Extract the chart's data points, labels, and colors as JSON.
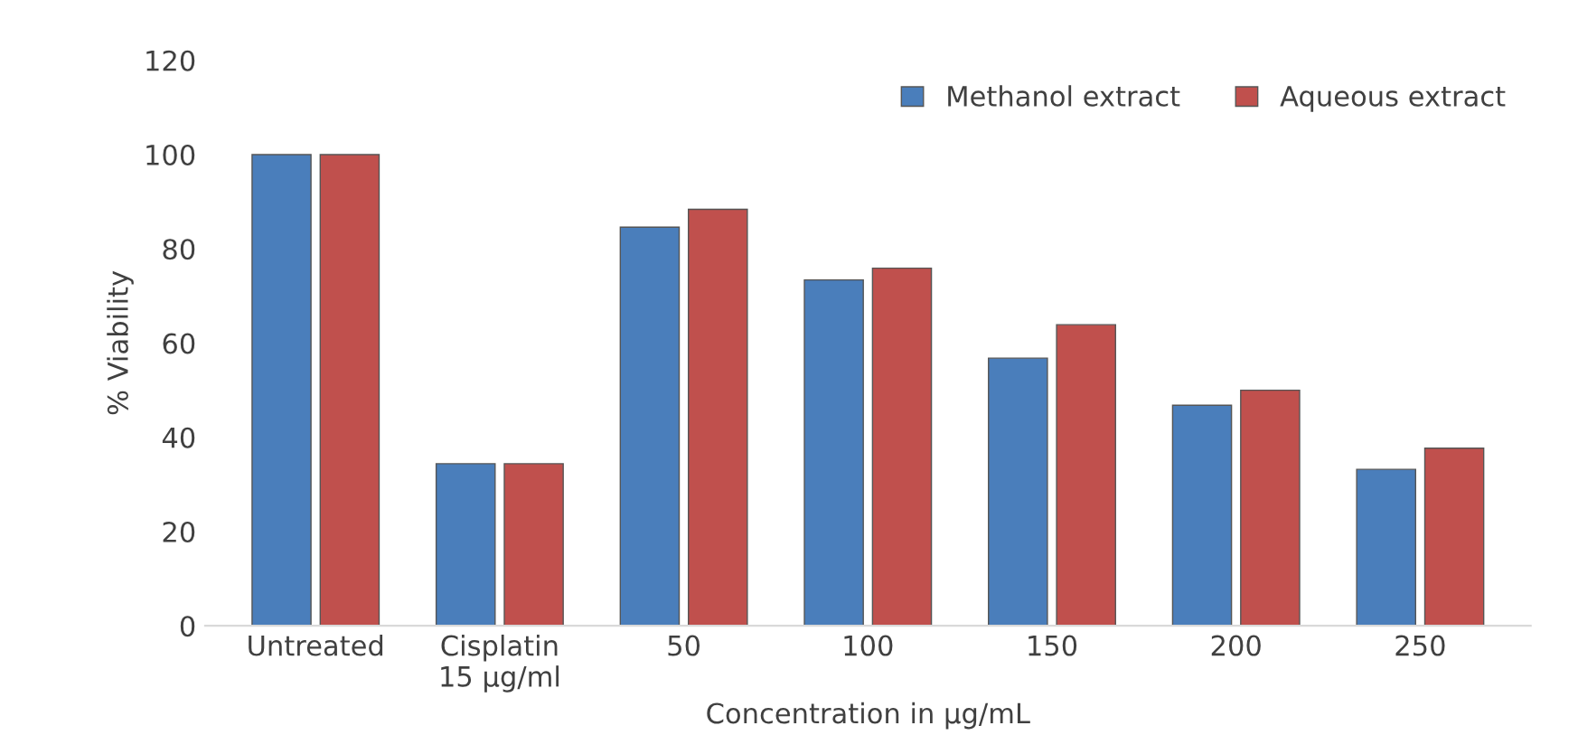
{
  "chart_data": {
    "type": "bar",
    "xlabel": "Concentration in µg/mL",
    "ylabel": "% Viability",
    "categories": [
      "Untreated",
      "Cisplatin\n15 µg/ml",
      "50",
      "100",
      "150",
      "200",
      "250"
    ],
    "series": [
      {
        "name": "Methanol extract",
        "color": "#4a7ebb",
        "values": [
          100,
          34.4,
          84.6,
          73.4,
          56.8,
          46.8,
          33.2
        ]
      },
      {
        "name": "Aqueous extract",
        "color": "#c0504d",
        "values": [
          100,
          34.4,
          88.4,
          75.9,
          63.9,
          50,
          37.7
        ]
      }
    ],
    "ylim": [
      0,
      120
    ],
    "yticks": [
      0,
      20,
      40,
      60,
      80,
      100,
      120
    ],
    "grid": false,
    "legend": "top right"
  }
}
